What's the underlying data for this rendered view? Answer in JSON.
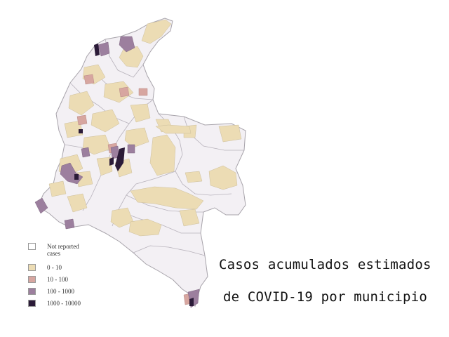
{
  "legend": {
    "items": [
      {
        "label": "Not reported cases",
        "color": "#ffffff"
      },
      {
        "label": "0 - 10",
        "color": "#ecdcb4"
      },
      {
        "label": "10 - 100",
        "color": "#d7a6a0"
      },
      {
        "label": "100 - 1000",
        "color": "#9c7f9e"
      },
      {
        "label": "1000 - 10000",
        "color": "#2b1b38"
      }
    ]
  },
  "caption": {
    "line1": "Casos acumulados estimados",
    "line2": "de COVID-19 por municipio"
  },
  "colors": {
    "no_data": "#f3f0f4",
    "border": "#a7a3aa"
  }
}
